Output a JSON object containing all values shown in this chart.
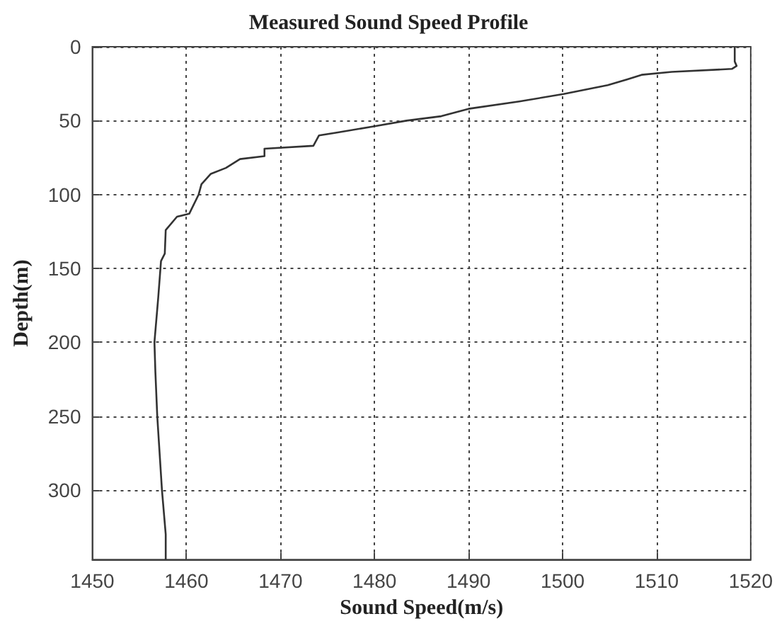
{
  "chart_data": {
    "type": "line",
    "title": "Measured Sound Speed Profile",
    "xlabel": "Sound Speed(m/s)",
    "ylabel": "Depth(m)",
    "x": [
      1518.3,
      1518.3,
      1518.5,
      1518,
      1511.6,
      1508.4,
      1506.9,
      1504.8,
      1503.2,
      1500.1,
      1495.4,
      1490,
      1487.1,
      1483.4,
      1479.8,
      1476.1,
      1474.1,
      1473.5,
      1468.3,
      1468.3,
      1465.7,
      1464.2,
      1462.6,
      1461.6,
      1461.3,
      1460.3,
      1459,
      1457.8,
      1457.7,
      1457.3,
      1457,
      1456.6,
      1456.7,
      1456.9,
      1457.4,
      1457.8,
      1457.8
    ],
    "series": [
      {
        "color": "#333333",
        "values": [
          0,
          10,
          13,
          15,
          17,
          19,
          22,
          26,
          28,
          32,
          37,
          42,
          47,
          50,
          54,
          58,
          60,
          67,
          69,
          74,
          76,
          82,
          86,
          93,
          100,
          113,
          115,
          124,
          140,
          145,
          170,
          200,
          220,
          250,
          300,
          330,
          347
        ]
      }
    ],
    "xlim": [
      1450,
      1520
    ],
    "xticks": [
      1450,
      1460,
      1470,
      1480,
      1490,
      1500,
      1510,
      1520
    ],
    "ylim": [
      347,
      0
    ],
    "yticks": [
      0,
      50,
      100,
      150,
      200,
      250,
      300
    ],
    "grid": true,
    "marker": "none",
    "line_style": "solid"
  }
}
